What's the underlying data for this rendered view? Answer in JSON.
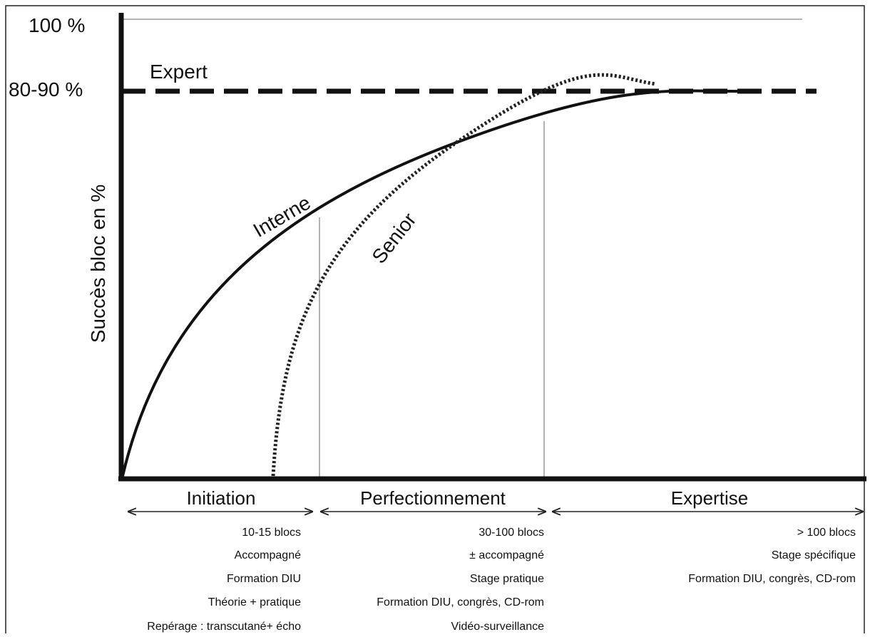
{
  "y_axis": {
    "title": "Succès bloc en %",
    "top_label": "100 %",
    "expert_label": "80-90 %",
    "expert_text": "Expert"
  },
  "curves": {
    "interne": "Interne",
    "senior": "Senior"
  },
  "phases": [
    {
      "name": "Initiation",
      "items": [
        "10-15 blocs",
        "Accompagné",
        "Formation DIU",
        "Théorie + pratique",
        "Repérage : transcutané+  écho"
      ]
    },
    {
      "name": "Perfectionnement",
      "items": [
        "30-100 blocs",
        "± accompagné",
        "Stage pratique",
        "Formation DIU, congrès, CD-rom",
        "Vidéo-surveillance"
      ]
    },
    {
      "name": "Expertise",
      "items": [
        "> 100 blocs",
        "Stage spécifique",
        "Formation DIU, congrès, CD-rom"
      ]
    }
  ]
}
